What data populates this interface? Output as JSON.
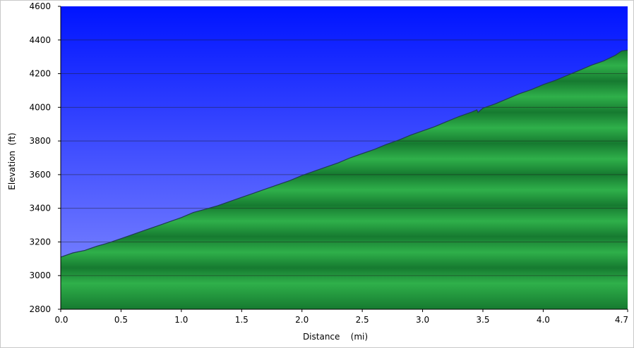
{
  "chart_data": {
    "type": "area",
    "title": "",
    "xlabel": "Distance    (mi)",
    "ylabel": "Elevation  (ft)",
    "xlim": [
      0.0,
      4.7
    ],
    "ylim": [
      2800,
      4600
    ],
    "x_ticks": [
      "0.0",
      "0.5",
      "1.0",
      "1.5",
      "2.0",
      "2.5",
      "3.0",
      "3.5",
      "4.0",
      "4.7"
    ],
    "x_tick_values": [
      0.0,
      0.5,
      1.0,
      1.5,
      2.0,
      2.5,
      3.0,
      3.5,
      4.0,
      4.7
    ],
    "y_ticks": [
      "2800",
      "3000",
      "3200",
      "3400",
      "3600",
      "3800",
      "4000",
      "4200",
      "4400",
      "4600"
    ],
    "y_tick_values": [
      2800,
      3000,
      3200,
      3400,
      3600,
      3800,
      4000,
      4200,
      4400,
      4600
    ],
    "grid": true,
    "series": [
      {
        "x": [
          0.0,
          0.1,
          0.2,
          0.3,
          0.4,
          0.5,
          0.6,
          0.7,
          0.8,
          0.9,
          1.0,
          1.1,
          1.2,
          1.3,
          1.4,
          1.5,
          1.6,
          1.7,
          1.8,
          1.9,
          2.0,
          2.1,
          2.2,
          2.3,
          2.4,
          2.5,
          2.6,
          2.7,
          2.8,
          2.9,
          3.0,
          3.1,
          3.2,
          3.3,
          3.4,
          3.45,
          3.46,
          3.5,
          3.6,
          3.7,
          3.8,
          3.9,
          4.0,
          4.1,
          4.2,
          4.3,
          4.4,
          4.5,
          4.6,
          4.65,
          4.7
        ],
        "values": [
          3110,
          3135,
          3150,
          3175,
          3195,
          3220,
          3245,
          3270,
          3295,
          3320,
          3345,
          3375,
          3395,
          3415,
          3440,
          3465,
          3490,
          3515,
          3540,
          3565,
          3595,
          3620,
          3645,
          3670,
          3700,
          3725,
          3750,
          3780,
          3805,
          3835,
          3860,
          3885,
          3915,
          3945,
          3970,
          3985,
          3970,
          3995,
          4020,
          4050,
          4080,
          4105,
          4135,
          4160,
          4190,
          4220,
          4250,
          4275,
          4310,
          4335,
          4340
        ]
      }
    ],
    "colors": {
      "sky_top": "#0014ff",
      "sky_bottom": "#8890ff",
      "terrain_light": "#2fb04a",
      "terrain_dark": "#167a30",
      "profile_line": "#1f3a55",
      "grid": "#1a1a1a"
    }
  }
}
